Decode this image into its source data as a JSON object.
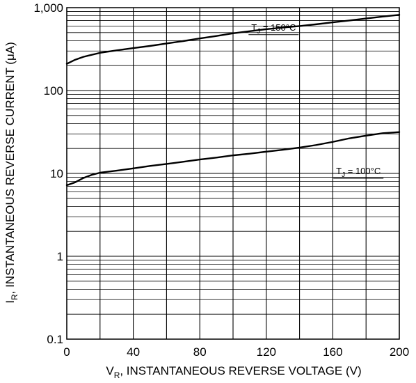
{
  "chart_data": {
    "type": "line",
    "title": "",
    "xlabel": {
      "main": "V",
      "sub": "R",
      "rest": ", INSTANTANEOUS REVERSE VOLTAGE (V)"
    },
    "ylabel": {
      "main": "I",
      "sub": "R",
      "rest": ", INSTANTANEOUS REVERSE CURRENT (μA)"
    },
    "xlim": [
      0,
      200
    ],
    "ylim": [
      0.1,
      1000
    ],
    "yscale": "log",
    "grid": true,
    "x_ticks": [
      {
        "value": 0,
        "label": "0"
      },
      {
        "value": 40,
        "label": "40"
      },
      {
        "value": 80,
        "label": "80"
      },
      {
        "value": 120,
        "label": "120"
      },
      {
        "value": 160,
        "label": "160"
      },
      {
        "value": 200,
        "label": "200"
      }
    ],
    "y_ticks": [
      {
        "value": 0.1,
        "label": "0.1"
      },
      {
        "value": 1,
        "label": "1"
      },
      {
        "value": 10,
        "label": "10"
      },
      {
        "value": 100,
        "label": "100"
      },
      {
        "value": 1000,
        "label": "1,000"
      }
    ],
    "series": [
      {
        "label": {
          "main": "T",
          "sub": "J",
          "rest": " = 150°C"
        },
        "label_at": [
          111,
          530
        ],
        "x": [
          0,
          5,
          10,
          20,
          30,
          40,
          50,
          60,
          70,
          80,
          90,
          100,
          110,
          120,
          130,
          140,
          150,
          160,
          170,
          180,
          190,
          200
        ],
        "y": [
          210,
          235,
          255,
          285,
          305,
          325,
          345,
          370,
          395,
          425,
          455,
          490,
          520,
          550,
          575,
          600,
          630,
          665,
          700,
          740,
          780,
          820
        ]
      },
      {
        "label": {
          "main": "T",
          "sub": "J",
          "rest": " = 100°C"
        },
        "label_at": [
          162,
          9.8
        ],
        "x": [
          0,
          5,
          10,
          15,
          20,
          30,
          40,
          50,
          60,
          70,
          80,
          90,
          100,
          110,
          120,
          130,
          140,
          150,
          160,
          170,
          180,
          190,
          200
        ],
        "y": [
          7.2,
          7.8,
          8.8,
          9.6,
          10.2,
          10.8,
          11.5,
          12.3,
          13,
          13.8,
          14.7,
          15.5,
          16.5,
          17.3,
          18.3,
          19.3,
          20.5,
          22,
          24,
          26.5,
          28.5,
          30.5,
          31.5
        ]
      }
    ]
  }
}
